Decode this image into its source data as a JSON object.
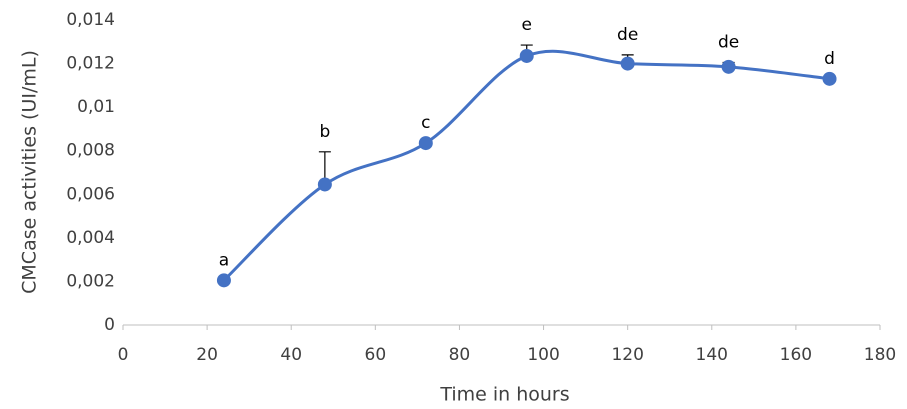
{
  "chart_data": {
    "type": "scatter",
    "x_label": "Time in hours",
    "y_label": "CMCase activities (UI/mL)",
    "x": [
      24,
      48,
      72,
      96,
      120,
      144,
      168
    ],
    "series": [
      {
        "name": "CMCase",
        "color": "#4472c4",
        "values": [
          0.00205,
          0.00645,
          0.00835,
          0.01235,
          0.012,
          0.01185,
          0.0113
        ],
        "errors": [
          0,
          0.0015,
          0,
          0.0005,
          0.0004,
          0.0002,
          0
        ],
        "point_labels": [
          "a",
          "b",
          "c",
          "e",
          "de",
          "de",
          "d"
        ]
      }
    ],
    "xlim": [
      0,
      180
    ],
    "xticks": [
      0,
      20,
      40,
      60,
      80,
      100,
      120,
      140,
      160,
      180
    ],
    "ylim": [
      0,
      0.014
    ],
    "yticks": [
      0,
      {
        "value": 0.002,
        "label": "0,002"
      },
      {
        "value": 0.004,
        "label": "0,004"
      },
      {
        "value": 0.006,
        "label": "0,006"
      },
      {
        "value": 0.008,
        "label": "0,008"
      },
      {
        "value": 0.01,
        "label": "0,01"
      },
      {
        "value": 0.012,
        "label": "0,012"
      },
      {
        "value": 0.014,
        "label": "0,014"
      }
    ],
    "smooth": true,
    "grid": false
  }
}
